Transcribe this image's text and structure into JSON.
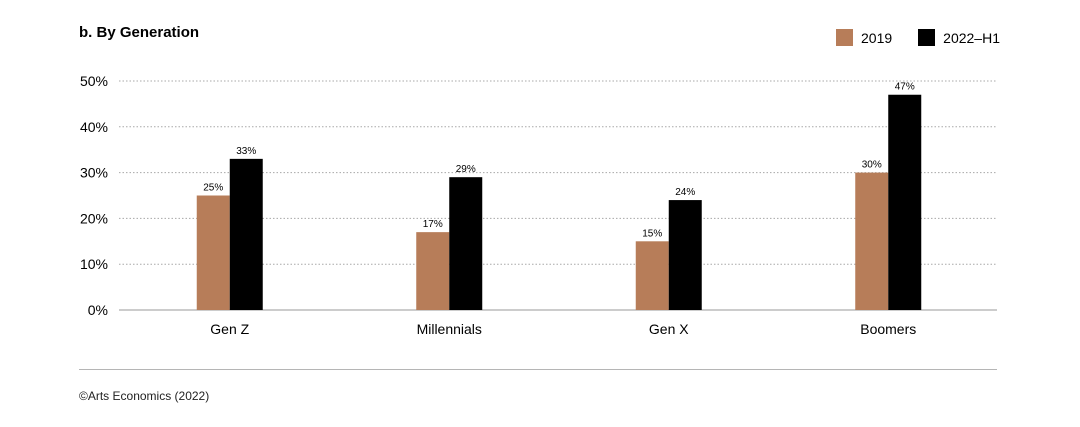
{
  "chart_data": {
    "type": "bar",
    "title": "b. By Generation",
    "categories": [
      "Gen Z",
      "Millennials",
      "Gen X",
      "Boomers"
    ],
    "series": [
      {
        "name": "2019",
        "values": [
          25,
          17,
          15,
          30
        ],
        "color": "#b77d59"
      },
      {
        "name": "2022–H1",
        "values": [
          33,
          29,
          24,
          47
        ],
        "color": "#000000"
      }
    ],
    "data_label_suffix": "%",
    "y_ticks": [
      "0%",
      "10%",
      "20%",
      "30%",
      "40%",
      "50%"
    ],
    "ylim": [
      0,
      50
    ],
    "grid": true,
    "legend": "top-right"
  },
  "footer": {
    "source": "©Arts Economics (2022)"
  }
}
